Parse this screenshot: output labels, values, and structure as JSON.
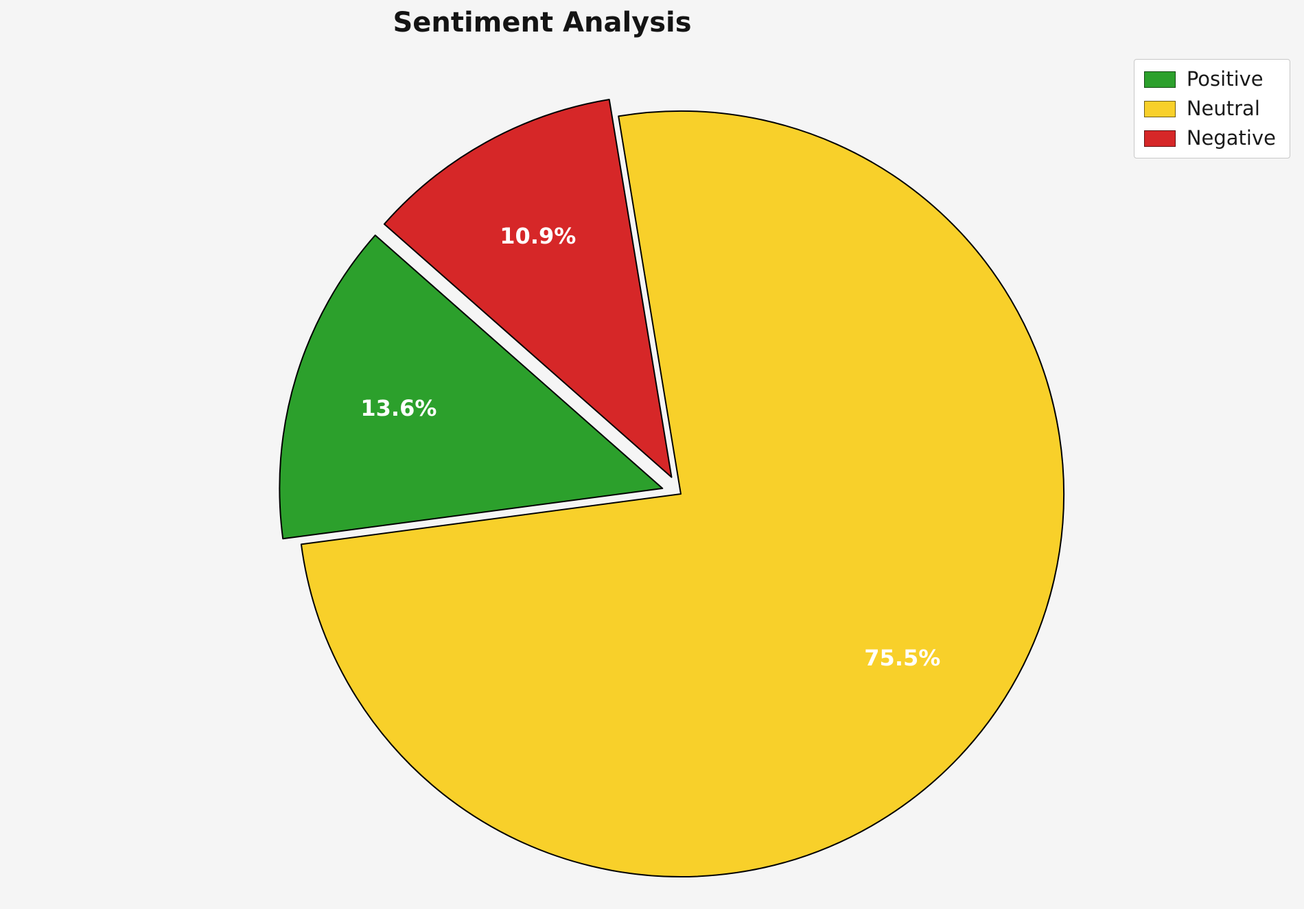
{
  "title": "Sentiment Analysis",
  "background_color": "#f5f5f5",
  "chart_data": {
    "type": "pie",
    "title": "Sentiment Analysis",
    "labels": [
      "Positive",
      "Neutral",
      "Negative"
    ],
    "values": [
      13.6,
      75.5,
      10.9
    ],
    "pct_labels": [
      "13.6%",
      "75.5%",
      "10.9%"
    ],
    "colors": [
      "#2ca02c",
      "#f8d02a",
      "#d62728"
    ],
    "explode": [
      0.05,
      0,
      0.05
    ],
    "start_angle": 138.6,
    "counterclock": true,
    "edge_color": "#000000",
    "pct_label_color": "#ffffff",
    "legend": {
      "position": "upper right",
      "entries": [
        "Positive",
        "Neutral",
        "Negative"
      ]
    }
  }
}
